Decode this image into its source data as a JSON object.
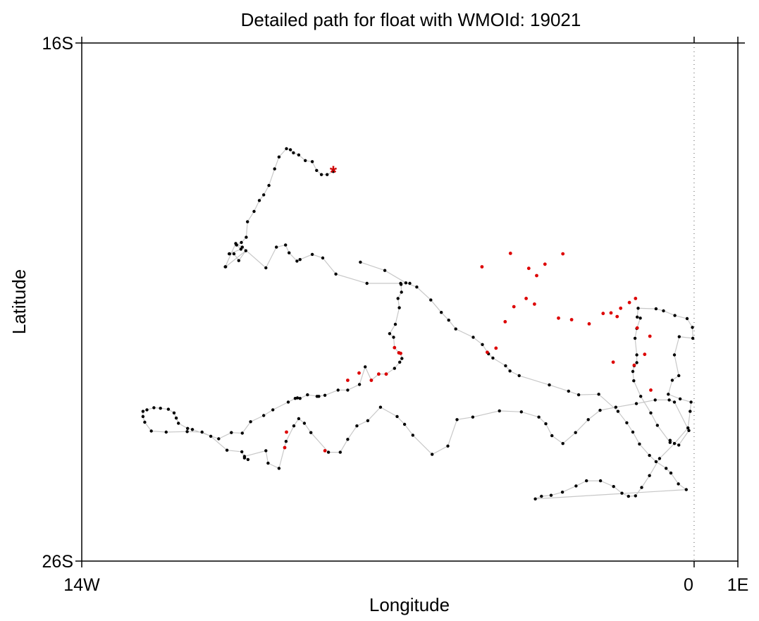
{
  "chart_data": {
    "type": "scatter",
    "title": "Detailed path for float with WMOId: 19021",
    "xlabel": "Longitude",
    "ylabel": "Latitude",
    "xlim": [
      -14,
      1
    ],
    "ylim": [
      -26,
      -16
    ],
    "x_ticks": [
      {
        "value": -14,
        "label": "14W"
      },
      {
        "value": 0,
        "label": "0"
      },
      {
        "value": 1,
        "label": "1E"
      }
    ],
    "y_ticks": [
      {
        "value": -16,
        "label": "16S"
      },
      {
        "value": -26,
        "label": "26S"
      }
    ],
    "grid": false,
    "reference_lines": [
      {
        "orientation": "vertical",
        "value": 0,
        "style": "dotted"
      }
    ],
    "colors": {
      "path_line": "#c8c8c8",
      "point": "#000000",
      "highlight_point": "#dd0000",
      "start_marker": "#cc0000"
    },
    "start_marker": {
      "symbol": "*",
      "x": -8.25,
      "y": -18.48
    },
    "path": [
      [
        -8.25,
        -18.48
      ],
      [
        -8.39,
        -18.54
      ],
      [
        -8.52,
        -18.54
      ],
      [
        -8.63,
        -18.46
      ],
      [
        -8.73,
        -18.29
      ],
      [
        -8.89,
        -18.27
      ],
      [
        -9.04,
        -18.16
      ],
      [
        -9.16,
        -18.12
      ],
      [
        -9.23,
        -18.06
      ],
      [
        -9.32,
        -18.04
      ],
      [
        -9.49,
        -18.2
      ],
      [
        -9.59,
        -18.43
      ],
      [
        -9.72,
        -18.75
      ],
      [
        -9.84,
        -18.93
      ],
      [
        -9.94,
        -19.04
      ],
      [
        -10.06,
        -19.25
      ],
      [
        -10.21,
        -19.45
      ],
      [
        -10.24,
        -19.75
      ],
      [
        -10.35,
        -19.85
      ],
      [
        -10.46,
        -19.9
      ],
      [
        -10.36,
        -19.98
      ],
      [
        -10.63,
        -20.07
      ],
      [
        -10.62,
        -20.07
      ],
      [
        -10.52,
        -20.07
      ],
      [
        -10.41,
        -20.2
      ],
      [
        -10.25,
        -20.01
      ],
      [
        -10.71,
        -20.32
      ],
      [
        -10.72,
        -20.32
      ],
      [
        -10.48,
        -19.87
      ],
      [
        -10.33,
        -19.94
      ],
      [
        -9.79,
        -20.34
      ],
      [
        -9.55,
        -19.94
      ],
      [
        -9.34,
        -19.9
      ],
      [
        -9.26,
        -20.05
      ],
      [
        -9.08,
        -20.21
      ],
      [
        -9.01,
        -20.18
      ],
      [
        -8.73,
        -20.08
      ],
      [
        -8.49,
        -20.15
      ],
      [
        -8.19,
        -20.46
      ],
      [
        -7.48,
        -20.64
      ],
      [
        -6.5,
        -20.64
      ],
      [
        -6.71,
        -20.64
      ],
      [
        -6.7,
        -20.66
      ],
      [
        -6.69,
        -20.81
      ],
      [
        -6.77,
        -20.93
      ],
      [
        -6.74,
        -21.11
      ],
      [
        -6.83,
        -21.43
      ],
      [
        -6.96,
        -21.61
      ],
      [
        -6.87,
        -21.68
      ],
      [
        -6.85,
        -21.88
      ],
      [
        -6.75,
        -21.98
      ],
      [
        -6.71,
        -21.99
      ],
      [
        -6.68,
        -22.09
      ],
      [
        -6.73,
        -22.16
      ],
      [
        -6.85,
        -22.28
      ],
      [
        -7.04,
        -22.39
      ],
      [
        -7.21,
        -22.39
      ],
      [
        -7.38,
        -22.51
      ],
      [
        -7.52,
        -22.25
      ],
      [
        -7.65,
        -22.59
      ],
      [
        -7.92,
        -22.7
      ],
      [
        -8.14,
        -22.7
      ],
      [
        -8.44,
        -22.8
      ],
      [
        -8.62,
        -22.82
      ],
      [
        -8.58,
        -22.82
      ],
      [
        -8.84,
        -22.79
      ],
      [
        -9.01,
        -22.86
      ],
      [
        -9.07,
        -22.85
      ],
      [
        -9.12,
        -22.86
      ],
      [
        -9.28,
        -22.93
      ],
      [
        -9.63,
        -23.08
      ],
      [
        -9.84,
        -23.19
      ],
      [
        -10.14,
        -23.31
      ],
      [
        -10.33,
        -23.53
      ],
      [
        -10.58,
        -23.52
      ],
      [
        -10.87,
        -23.64
      ],
      [
        -11.47,
        -23.46
      ],
      [
        -11.58,
        -23.44
      ],
      [
        -11.79,
        -23.34
      ],
      [
        -11.84,
        -23.24
      ],
      [
        -11.89,
        -23.14
      ],
      [
        -12.02,
        -23.07
      ],
      [
        -12.2,
        -23.05
      ],
      [
        -12.35,
        -23.04
      ],
      [
        -12.51,
        -23.08
      ],
      [
        -12.6,
        -23.11
      ],
      [
        -12.6,
        -23.21
      ],
      [
        -12.56,
        -23.32
      ],
      [
        -12.41,
        -23.49
      ],
      [
        -12.07,
        -23.51
      ],
      [
        -11.59,
        -23.5
      ],
      [
        -11.25,
        -23.51
      ],
      [
        -11.05,
        -23.59
      ],
      [
        -10.68,
        -23.86
      ],
      [
        -10.34,
        -23.89
      ],
      [
        -10.28,
        -24.01
      ],
      [
        -10.2,
        -24.04
      ],
      [
        -10.28,
        -23.98
      ],
      [
        -9.79,
        -23.87
      ],
      [
        -9.74,
        -24.11
      ],
      [
        -9.49,
        -24.21
      ],
      [
        -9.33,
        -23.69
      ],
      [
        -9.15,
        -23.39
      ],
      [
        -9.04,
        -23.25
      ],
      [
        -8.91,
        -23.34
      ],
      [
        -8.76,
        -23.52
      ],
      [
        -8.36,
        -23.9
      ],
      [
        -8.09,
        -23.9
      ],
      [
        -7.92,
        -23.65
      ],
      [
        -7.71,
        -23.39
      ],
      [
        -7.46,
        -23.29
      ],
      [
        -7.17,
        -23.03
      ],
      [
        -6.79,
        -23.21
      ],
      [
        -6.62,
        -23.36
      ],
      [
        -6.43,
        -23.57
      ],
      [
        -5.99,
        -23.94
      ],
      [
        -5.63,
        -23.78
      ],
      [
        -5.42,
        -23.27
      ],
      [
        -5.06,
        -23.22
      ],
      [
        -4.45,
        -23.1
      ],
      [
        -3.95,
        -23.12
      ],
      [
        -3.55,
        -23.22
      ],
      [
        -3.39,
        -23.35
      ],
      [
        -3.25,
        -23.58
      ],
      [
        -3.0,
        -23.73
      ],
      [
        -2.71,
        -23.52
      ],
      [
        -2.42,
        -23.27
      ],
      [
        -2.15,
        -23.09
      ],
      [
        -1.79,
        -23.03
      ],
      [
        -1.32,
        -22.96
      ],
      [
        -0.89,
        -22.89
      ],
      [
        -0.57,
        -22.89
      ],
      [
        -0.45,
        -22.93
      ],
      [
        -0.12,
        -23.48
      ],
      [
        -0.35,
        -23.76
      ],
      [
        -0.55,
        -23.67
      ],
      [
        -0.55,
        -23.71
      ],
      [
        -0.84,
        -23.38
      ],
      [
        -0.99,
        -23.14
      ],
      [
        -1.22,
        -22.82
      ],
      [
        -1.38,
        -22.52
      ],
      [
        -1.4,
        -22.34
      ],
      [
        -1.37,
        -22.23
      ],
      [
        -1.31,
        -22.17
      ],
      [
        -1.31,
        -22.02
      ],
      [
        -1.35,
        -21.7
      ],
      [
        -1.31,
        -21.51
      ],
      [
        -1.23,
        -21.31
      ],
      [
        -1.3,
        -21.29
      ],
      [
        -1.28,
        -21.12
      ],
      [
        -0.87,
        -21.13
      ],
      [
        -0.7,
        -21.17
      ],
      [
        -0.44,
        -21.26
      ],
      [
        -0.16,
        -21.32
      ],
      [
        -0.04,
        -21.49
      ],
      [
        -0.03,
        -21.7
      ],
      [
        -0.34,
        -21.67
      ],
      [
        -0.45,
        -22.02
      ],
      [
        -0.35,
        -22.42
      ],
      [
        -0.5,
        -22.51
      ],
      [
        -0.59,
        -22.78
      ],
      [
        -0.32,
        -22.87
      ],
      [
        -0.07,
        -22.93
      ],
      [
        -0.09,
        -23.11
      ],
      [
        -0.14,
        -23.43
      ],
      [
        -0.45,
        -23.73
      ],
      [
        -0.79,
        -24.02
      ],
      [
        -1.02,
        -24.35
      ],
      [
        -1.2,
        -24.58
      ],
      [
        -1.34,
        -24.74
      ],
      [
        -1.5,
        -24.75
      ],
      [
        -1.65,
        -24.69
      ],
      [
        -1.84,
        -24.56
      ],
      [
        -2.14,
        -24.45
      ],
      [
        -2.46,
        -24.45
      ],
      [
        -2.7,
        -24.55
      ],
      [
        -3.01,
        -24.67
      ],
      [
        -3.27,
        -24.73
      ],
      [
        -3.49,
        -24.75
      ],
      [
        -3.63,
        -24.8
      ],
      [
        -0.18,
        -24.62
      ],
      [
        -0.36,
        -24.51
      ],
      [
        -0.53,
        -24.3
      ],
      [
        -0.64,
        -24.21
      ],
      [
        -0.87,
        -24.08
      ],
      [
        -1.02,
        -23.96
      ],
      [
        -1.25,
        -23.74
      ],
      [
        -1.4,
        -23.51
      ],
      [
        -1.54,
        -23.33
      ],
      [
        -1.74,
        -23.11
      ],
      [
        -2.18,
        -22.78
      ],
      [
        -2.64,
        -22.79
      ],
      [
        -2.87,
        -22.72
      ],
      [
        -3.31,
        -22.6
      ],
      [
        -4.0,
        -22.42
      ],
      [
        -4.21,
        -22.33
      ],
      [
        -4.31,
        -22.23
      ],
      [
        -4.6,
        -22.08
      ],
      [
        -4.7,
        -22.0
      ],
      [
        -4.84,
        -21.82
      ],
      [
        -5.05,
        -21.68
      ],
      [
        -5.45,
        -21.52
      ],
      [
        -5.61,
        -21.35
      ],
      [
        -5.78,
        -21.2
      ],
      [
        -6.02,
        -20.96
      ],
      [
        -6.34,
        -20.71
      ],
      [
        -6.59,
        -20.63
      ],
      [
        -7.07,
        -20.39
      ],
      [
        -7.63,
        -20.23
      ]
    ],
    "highlight_points": [
      [
        -6.85,
        -21.88
      ],
      [
        -6.75,
        -21.98
      ],
      [
        -6.71,
        -21.99
      ],
      [
        -7.04,
        -22.39
      ],
      [
        -7.38,
        -22.51
      ],
      [
        -7.21,
        -22.39
      ],
      [
        -7.66,
        -22.37
      ],
      [
        -7.92,
        -22.51
      ],
      [
        -9.36,
        -23.81
      ],
      [
        -8.44,
        -23.87
      ],
      [
        -9.32,
        -23.51
      ],
      [
        -4.85,
        -20.32
      ],
      [
        -4.2,
        -20.06
      ],
      [
        -3.0,
        -20.07
      ],
      [
        -3.41,
        -20.27
      ],
      [
        -3.78,
        -20.35
      ],
      [
        -3.6,
        -20.49
      ],
      [
        -3.84,
        -20.93
      ],
      [
        -4.12,
        -21.09
      ],
      [
        -4.32,
        -21.38
      ],
      [
        -4.53,
        -21.89
      ],
      [
        -4.73,
        -21.97
      ],
      [
        -3.65,
        -21.04
      ],
      [
        -3.1,
        -21.31
      ],
      [
        -2.8,
        -21.34
      ],
      [
        -2.4,
        -21.42
      ],
      [
        -2.08,
        -21.22
      ],
      [
        -1.9,
        -21.21
      ],
      [
        -1.76,
        -21.28
      ],
      [
        -1.48,
        -21.01
      ],
      [
        -1.34,
        -20.93
      ],
      [
        -1.68,
        -21.12
      ],
      [
        -1.3,
        -21.5
      ],
      [
        -1.37,
        -22.22
      ],
      [
        -1.13,
        -22.01
      ],
      [
        -1.85,
        -22.16
      ],
      [
        -1.01,
        -21.66
      ],
      [
        -0.99,
        -22.7
      ]
    ]
  }
}
